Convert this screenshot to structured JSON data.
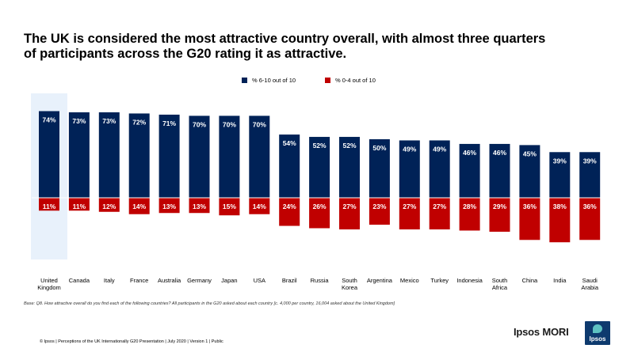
{
  "title": "The UK is considered the most attractive country overall, with almost three quarters of participants across the G20 rating it as attractive.",
  "base_note": "Base: Q8. How attractive overall do you find each of the following countries? All participants in the G20 asked about each country [c. 4,000 per country, 16,004 asked about the United Kingdom]",
  "footer": "© Ipsos | Perceptions of the UK Internationally  G20 Presentation  | July 2020  | Version  1 | Public",
  "brand": {
    "name": "Ipsos MORI",
    "logo_text": "Ipsos"
  },
  "colors": {
    "positive": "#002257",
    "negative": "#c00000",
    "highlight": "#e8f1fb",
    "label": "#ffffff"
  },
  "chart_data": {
    "type": "bar",
    "stacked_diverging": true,
    "categories": [
      "United Kingdom",
      "Canada",
      "Italy",
      "France",
      "Australia",
      "Germany",
      "Japan",
      "USA",
      "Brazil",
      "Russia",
      "South Korea",
      "Argentina",
      "Mexico",
      "Turkey",
      "Indonesia",
      "South Africa",
      "China",
      "India",
      "Saudi Arabia"
    ],
    "category_lines": [
      [
        "United",
        "Kingdom"
      ],
      [
        "Canada"
      ],
      [
        "Italy"
      ],
      [
        "France"
      ],
      [
        "Australia"
      ],
      [
        "Germany"
      ],
      [
        "Japan"
      ],
      [
        "USA"
      ],
      [
        "Brazil"
      ],
      [
        "Russia"
      ],
      [
        "South",
        "Korea"
      ],
      [
        "Argentina"
      ],
      [
        "Mexico"
      ],
      [
        "Turkey"
      ],
      [
        "Indonesia"
      ],
      [
        "South",
        "Africa"
      ],
      [
        "China"
      ],
      [
        "India"
      ],
      [
        "Saudi",
        "Arabia"
      ]
    ],
    "series": [
      {
        "name": "% 6-10 out of 10",
        "values": [
          74,
          73,
          73,
          72,
          71,
          70,
          70,
          70,
          54,
          52,
          52,
          50,
          49,
          49,
          46,
          46,
          45,
          39,
          39
        ],
        "labels": [
          "74%",
          "73%",
          "73%",
          "72%",
          "71%",
          "70%",
          "70%",
          "70%",
          "54%",
          "52%",
          "52%",
          "50%",
          "49%",
          "49%",
          "46%",
          "46%",
          "45%",
          "39%",
          "39%"
        ]
      },
      {
        "name": "% 0-4 out of 10",
        "values": [
          11,
          11,
          12,
          14,
          13,
          13,
          15,
          14,
          24,
          26,
          27,
          23,
          27,
          27,
          28,
          29,
          36,
          38,
          36
        ],
        "labels": [
          "11%",
          "11%",
          "12%",
          "14%",
          "13%",
          "13%",
          "15%",
          "14%",
          "24%",
          "26%",
          "27%",
          "23%",
          "27%",
          "27%",
          "28%",
          "29%",
          "36%",
          "38%",
          "36%"
        ]
      }
    ],
    "highlighted_category": "United Kingdom",
    "legend_position": "top-center"
  }
}
